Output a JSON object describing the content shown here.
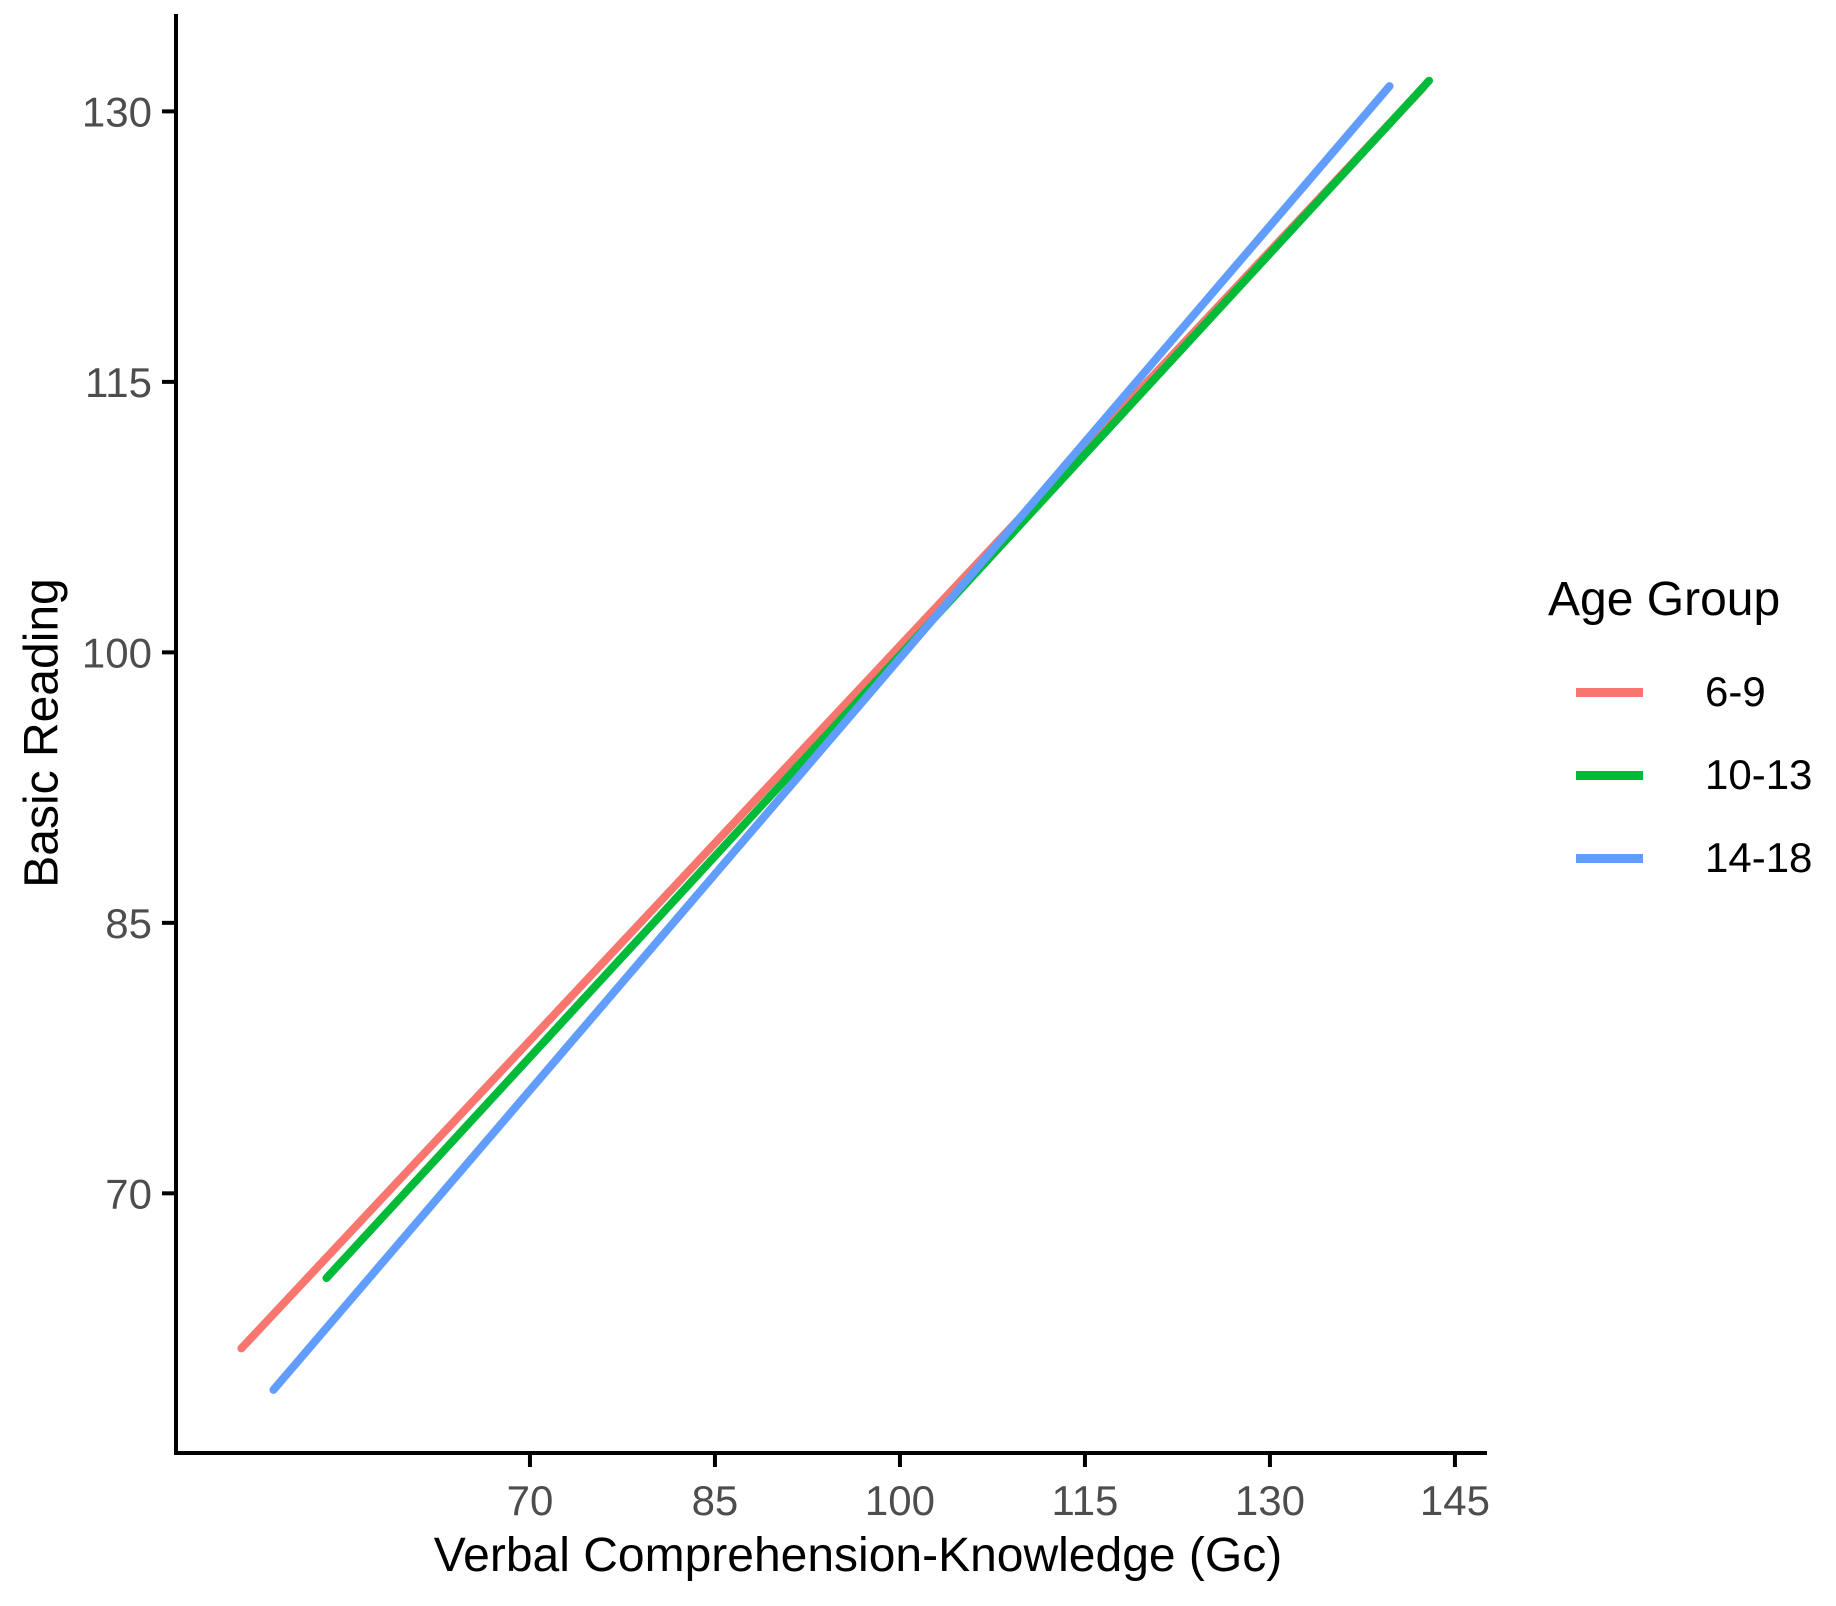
{
  "chart_data": {
    "type": "line",
    "title": "",
    "xlabel": "Verbal Comprehension-Knowledge (Gc)",
    "ylabel": "Basic Reading",
    "x_ticks": [
      70,
      85,
      100,
      115,
      130,
      145
    ],
    "y_ticks": [
      70,
      85,
      100,
      115,
      130
    ],
    "xlim": [
      41.3,
      147.6
    ],
    "ylim": [
      55.6,
      135.4
    ],
    "grid": "off",
    "legend": {
      "title": "Age Group",
      "position": "right"
    },
    "axis_color": "#000000",
    "tick_label_color": "#4D4D4D",
    "series": [
      {
        "name": "6-9",
        "color": "#F8766D",
        "x": [
          46.6,
          142.4
        ],
        "y": [
          61.4,
          131.3
        ]
      },
      {
        "name": "10-13",
        "color": "#00BA38",
        "x": [
          53.5,
          142.9
        ],
        "y": [
          65.3,
          131.7
        ]
      },
      {
        "name": "14-18",
        "color": "#619CFF",
        "x": [
          49.2,
          139.7
        ],
        "y": [
          59.1,
          131.4
        ]
      }
    ]
  }
}
